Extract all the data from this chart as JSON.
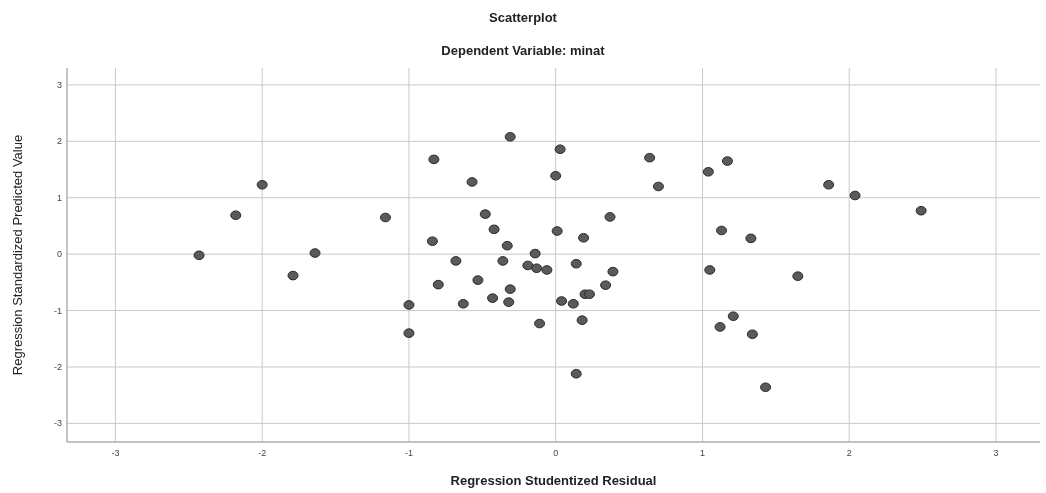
{
  "chart_data": {
    "type": "scatter",
    "title": "Scatterplot",
    "subtitle": "Dependent Variable: minat",
    "xlabel": "Regression Studentized Residual",
    "ylabel": "Regression Standardized Predicted Value",
    "x": [
      -2.43,
      -2.18,
      -2.0,
      -1.79,
      -1.64,
      -1.16,
      -0.83,
      -0.84,
      -0.57,
      -0.48,
      -0.42,
      -0.33,
      -0.31,
      -0.68,
      -0.36,
      -0.14,
      -0.19,
      -0.13,
      -0.06,
      -0.8,
      -0.53,
      -0.31,
      -0.43,
      -0.32,
      -0.63,
      -1.0,
      -1.0,
      -0.11,
      0.03,
      0.0,
      0.64,
      0.7,
      1.04,
      1.17,
      1.86,
      2.04,
      2.49,
      0.37,
      0.01,
      0.19,
      1.13,
      1.33,
      0.14,
      0.39,
      0.34,
      0.2,
      0.23,
      0.04,
      0.12,
      0.18,
      0.14,
      1.05,
      1.65,
      1.21,
      1.12,
      1.34,
      1.43
    ],
    "series": [
      {
        "color": "#5a5a5a",
        "values": [
          -0.02,
          0.69,
          1.23,
          -0.38,
          0.02,
          0.65,
          1.68,
          0.23,
          1.28,
          0.71,
          0.44,
          0.15,
          2.08,
          -0.12,
          -0.12,
          0.01,
          -0.2,
          -0.25,
          -0.28,
          -0.54,
          -0.46,
          -0.62,
          -0.78,
          -0.85,
          -0.88,
          -0.9,
          -1.4,
          -1.23,
          1.86,
          1.39,
          1.71,
          1.2,
          1.46,
          1.65,
          1.23,
          1.04,
          0.77,
          0.66,
          0.41,
          0.29,
          0.42,
          0.28,
          -0.17,
          -0.31,
          -0.55,
          -0.71,
          -0.71,
          -0.83,
          -0.88,
          -1.17,
          -2.12,
          -0.28,
          -0.39,
          -1.1,
          -1.29,
          -1.42,
          -2.36
        ]
      }
    ],
    "xlim": [
      -3.33,
      3.3
    ],
    "ylim": [
      -3.33,
      3.3
    ],
    "xticks": [
      -3,
      -2,
      -1,
      0,
      1,
      2,
      3
    ],
    "yticks": [
      -3,
      -2,
      -1,
      0,
      1,
      2,
      3
    ],
    "grid": true,
    "marker": "circle"
  }
}
